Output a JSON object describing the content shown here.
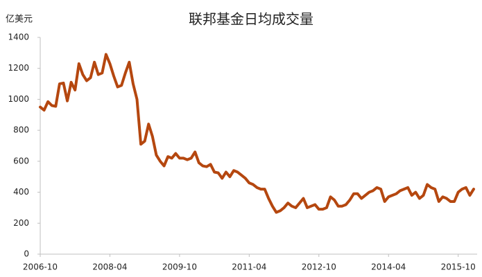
{
  "chart_data": {
    "type": "line",
    "title": "联邦基金日均成交量",
    "y_label": "亿美元",
    "x": [
      "2006-10",
      "2006-11",
      "2006-12",
      "2007-01",
      "2007-02",
      "2007-03",
      "2007-04",
      "2007-05",
      "2007-06",
      "2007-07",
      "2007-08",
      "2007-09",
      "2007-10",
      "2007-11",
      "2007-12",
      "2008-01",
      "2008-02",
      "2008-03",
      "2008-04",
      "2008-05",
      "2008-06",
      "2008-07",
      "2008-08",
      "2008-09",
      "2008-10",
      "2008-11",
      "2008-12",
      "2009-01",
      "2009-02",
      "2009-03",
      "2009-04",
      "2009-05",
      "2009-06",
      "2009-07",
      "2009-08",
      "2009-09",
      "2009-10",
      "2009-11",
      "2009-12",
      "2010-01",
      "2010-02",
      "2010-03",
      "2010-04",
      "2010-05",
      "2010-06",
      "2010-07",
      "2010-08",
      "2010-09",
      "2010-10",
      "2010-11",
      "2010-12",
      "2011-01",
      "2011-02",
      "2011-03",
      "2011-04",
      "2011-05",
      "2011-06",
      "2011-07",
      "2011-08",
      "2011-09",
      "2011-10",
      "2011-11",
      "2011-12",
      "2012-01",
      "2012-02",
      "2012-03",
      "2012-04",
      "2012-05",
      "2012-06",
      "2012-07",
      "2012-08",
      "2012-09",
      "2012-10",
      "2012-11",
      "2012-12",
      "2013-01",
      "2013-02",
      "2013-03",
      "2013-04",
      "2013-05",
      "2013-06",
      "2013-07",
      "2013-08",
      "2013-09",
      "2013-10",
      "2013-11",
      "2013-12",
      "2014-01",
      "2014-02",
      "2014-03",
      "2014-04",
      "2014-05",
      "2014-06",
      "2014-07",
      "2014-08",
      "2014-09",
      "2014-10",
      "2014-11",
      "2014-12",
      "2015-01",
      "2015-02",
      "2015-03",
      "2015-04",
      "2015-05",
      "2015-06",
      "2015-07",
      "2015-08",
      "2015-09",
      "2015-10",
      "2015-11",
      "2015-12",
      "2016-01",
      "2016-02"
    ],
    "series": [
      {
        "name": "联邦基金日均成交量",
        "color": "#b5470f",
        "values": [
          950,
          930,
          985,
          960,
          955,
          1100,
          1105,
          990,
          1110,
          1060,
          1230,
          1160,
          1120,
          1140,
          1240,
          1160,
          1170,
          1290,
          1230,
          1150,
          1080,
          1090,
          1170,
          1240,
          1100,
          1000,
          710,
          730,
          840,
          760,
          640,
          600,
          570,
          630,
          620,
          650,
          620,
          620,
          610,
          620,
          660,
          590,
          570,
          565,
          580,
          530,
          525,
          490,
          530,
          500,
          540,
          530,
          510,
          490,
          460,
          450,
          430,
          420,
          420,
          360,
          310,
          270,
          280,
          300,
          330,
          310,
          300,
          330,
          360,
          300,
          310,
          320,
          290,
          290,
          300,
          370,
          350,
          310,
          310,
          320,
          350,
          390,
          390,
          360,
          380,
          400,
          410,
          430,
          420,
          340,
          370,
          380,
          390,
          410,
          420,
          430,
          380,
          400,
          360,
          380,
          450,
          430,
          420,
          340,
          370,
          360,
          340,
          340,
          400,
          420,
          430,
          380,
          420
        ]
      }
    ],
    "xticks": [
      "2006-10",
      "2008-04",
      "2009-10",
      "2011-04",
      "2012-10",
      "2014-04",
      "2015-10"
    ],
    "ylim": [
      0,
      1400
    ],
    "yticks": [
      0,
      200,
      400,
      600,
      800,
      1000,
      1200,
      1400
    ],
    "grid": false
  }
}
